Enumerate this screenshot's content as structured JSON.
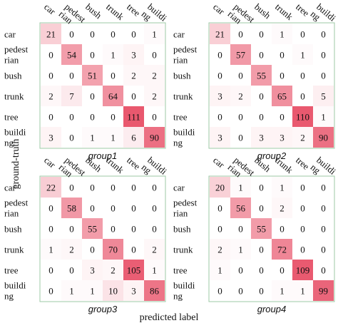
{
  "figure": {
    "ylabel": "ground-truth",
    "xlabel": "predicted label"
  },
  "colors": {
    "heat_low": "#ffffff",
    "heat_high": "#e8536a",
    "border": "#9dc8a6"
  },
  "chart_data": [
    {
      "type": "heatmap",
      "title": "group1",
      "col_labels": [
        "car",
        "pedest\nrian",
        "bush",
        "trunk",
        "tree",
        "buildi\nng"
      ],
      "row_labels": [
        "car",
        "pedest\nrian",
        "bush",
        "trunk",
        "tree",
        "buildi\nng"
      ],
      "values": [
        [
          21,
          0,
          0,
          0,
          0,
          1
        ],
        [
          0,
          54,
          0,
          1,
          3,
          0
        ],
        [
          0,
          0,
          51,
          0,
          2,
          2
        ],
        [
          2,
          7,
          0,
          64,
          0,
          2
        ],
        [
          0,
          0,
          0,
          0,
          111,
          0
        ],
        [
          3,
          0,
          1,
          1,
          6,
          90
        ]
      ]
    },
    {
      "type": "heatmap",
      "title": "group2",
      "col_labels": [
        "car",
        "pedest\nrian",
        "bush",
        "trunk",
        "tree",
        "buildi\nng"
      ],
      "row_labels": [
        "car",
        "pedest\nrian",
        "bush",
        "trunk",
        "tree",
        "buildi\nng"
      ],
      "values": [
        [
          21,
          0,
          0,
          1,
          0,
          0
        ],
        [
          0,
          57,
          0,
          0,
          1,
          0
        ],
        [
          0,
          0,
          55,
          0,
          0,
          0
        ],
        [
          3,
          2,
          0,
          65,
          0,
          5
        ],
        [
          0,
          0,
          0,
          0,
          110,
          1
        ],
        [
          3,
          0,
          3,
          3,
          2,
          90
        ]
      ]
    },
    {
      "type": "heatmap",
      "title": "group3",
      "col_labels": [
        "car",
        "pedest\nrian",
        "bush",
        "trunk",
        "tree",
        "buildi\nng"
      ],
      "row_labels": [
        "car",
        "pedest\nrian",
        "bush",
        "trunk",
        "tree",
        "buildi\nng"
      ],
      "values": [
        [
          22,
          0,
          0,
          0,
          0,
          0
        ],
        [
          0,
          58,
          0,
          0,
          0,
          0
        ],
        [
          0,
          0,
          55,
          0,
          0,
          0
        ],
        [
          1,
          2,
          0,
          70,
          0,
          2
        ],
        [
          0,
          0,
          3,
          2,
          105,
          1
        ],
        [
          0,
          1,
          1,
          10,
          3,
          86
        ]
      ]
    },
    {
      "type": "heatmap",
      "title": "group4",
      "col_labels": [
        "car",
        "pedest\nrian",
        "bush",
        "trunk",
        "tree",
        "buildi\nng"
      ],
      "row_labels": [
        "car",
        "pedest\nrian",
        "bush",
        "trunk",
        "tree",
        "buildi\nng"
      ],
      "values": [
        [
          20,
          1,
          0,
          1,
          0,
          0
        ],
        [
          0,
          56,
          0,
          2,
          0,
          0
        ],
        [
          0,
          0,
          55,
          0,
          0,
          0
        ],
        [
          2,
          1,
          0,
          72,
          0,
          0
        ],
        [
          1,
          0,
          0,
          0,
          109,
          0
        ],
        [
          0,
          0,
          0,
          1,
          1,
          99
        ]
      ]
    }
  ]
}
